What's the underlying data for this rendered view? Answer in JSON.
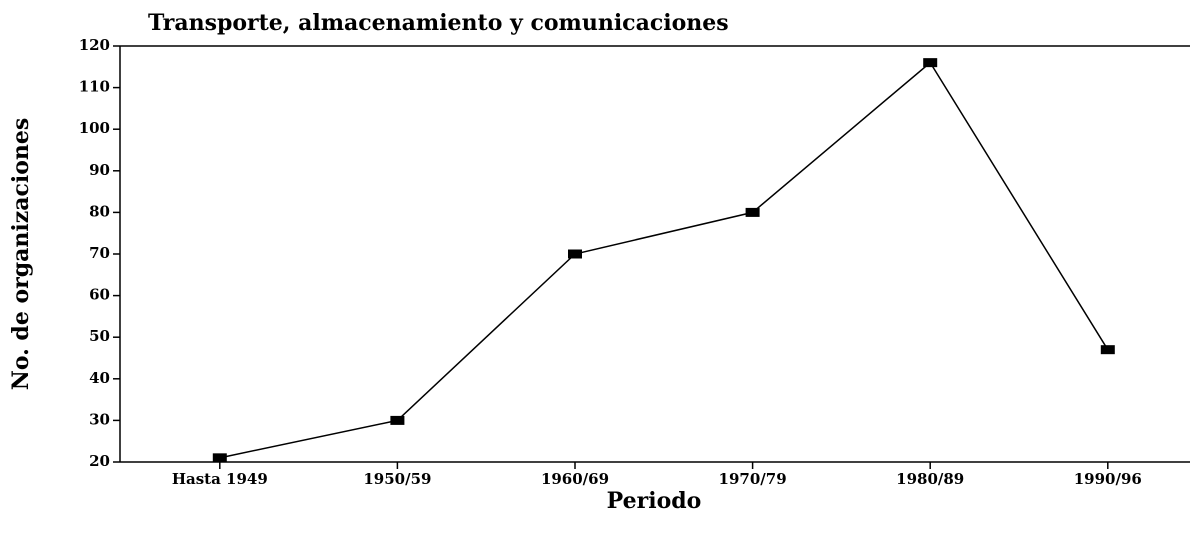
{
  "chart_data": {
    "type": "line",
    "title": "Transporte, almacenamiento y comunicaciones",
    "x_label": "Periodo",
    "y_label": "No. de organizaciones",
    "categories": [
      "Hasta 1949",
      "1950/59",
      "1960/69",
      "1970/79",
      "1980/89",
      "1990/96"
    ],
    "values": [
      21,
      30,
      70,
      80,
      116,
      47
    ],
    "color": "#000000",
    "ylim": [
      20,
      120
    ],
    "yticks": [
      20,
      30,
      40,
      50,
      60,
      70,
      80,
      90,
      100,
      110,
      120
    ],
    "grid": false
  }
}
